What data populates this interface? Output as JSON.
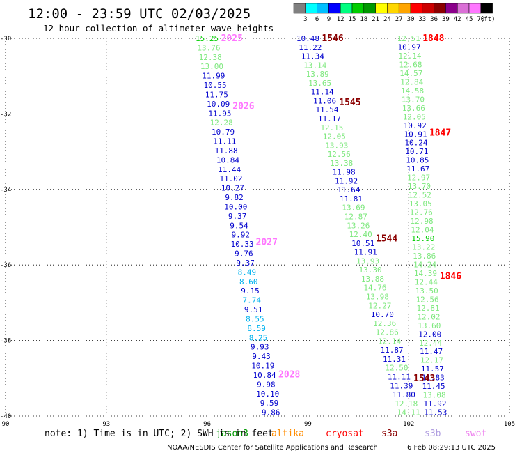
{
  "header": {
    "title": "12:00 - 23:59 UTC 02/03/2025",
    "subtitle": "12 hour collection of altimeter wave heights"
  },
  "colorbar": {
    "unit": "(ft)",
    "ticks": [
      "3",
      "6",
      "9",
      "12",
      "15",
      "18",
      "21",
      "24",
      "27",
      "30",
      "33",
      "36",
      "39",
      "42",
      "45",
      "70"
    ],
    "colors": [
      "#808080",
      "#00ffff",
      "#00bfff",
      "#0000ff",
      "#00ff7f",
      "#00cd00",
      "#009900",
      "#ffff00",
      "#ffd700",
      "#ffa500",
      "#ff0000",
      "#cc0000",
      "#8b0000",
      "#8b008b",
      "#da70d6",
      "#ff77ff",
      "#000000"
    ]
  },
  "footer": {
    "note": "note: 1) Time is in UTC; 2) SWH is in feet",
    "satellites": [
      {
        "name": "jason3",
        "color": "#009900"
      },
      {
        "name": "altika",
        "color": "#ff8c00"
      },
      {
        "name": "cryosat",
        "color": "#ff0000"
      },
      {
        "name": "s3a",
        "color": "#8b0000"
      },
      {
        "name": "s3b",
        "color": "#b09ee0"
      },
      {
        "name": "swot",
        "color": "#ee82ee"
      }
    ],
    "credit": "NOAA/NESDIS Center for Satellite Applications and Research",
    "timestamp": "6 Feb 08:29:13 UTC 2025"
  },
  "chart_data": {
    "type": "scatter",
    "xlim": [
      90,
      105
    ],
    "ylim": [
      -40,
      -30
    ],
    "xticks": [
      "90",
      "93",
      "96",
      "99",
      "102",
      "105"
    ],
    "yticks": [
      "-30",
      "-32",
      "-34",
      "-36",
      "-38",
      "-40"
    ],
    "grid": true,
    "tracks": [
      {
        "pass": "2025",
        "pass_color": "#ff77ff",
        "start": [
          96.0,
          -30.0
        ],
        "end": [
          97.9,
          -39.9
        ],
        "points": [
          {
            "v": "15.25",
            "c": "#00cd00"
          },
          {
            "v": "13.76",
            "c": "#7ee87e"
          },
          {
            "v": "12.38",
            "c": "#7ee87e"
          },
          {
            "v": "13.00",
            "c": "#7ee87e"
          },
          {
            "v": "11.99",
            "c": "#0000cd"
          },
          {
            "v": "10.55",
            "c": "#0000cd"
          },
          {
            "v": "11.75",
            "c": "#0000cd"
          },
          {
            "v": "10.09",
            "c": "#0000cd"
          },
          {
            "v": "11.95",
            "c": "#0000cd"
          },
          {
            "v": "12.28",
            "c": "#7ee87e"
          },
          {
            "v": "10.79",
            "c": "#0000cd"
          },
          {
            "v": "11.11",
            "c": "#0000cd"
          },
          {
            "v": "11.88",
            "c": "#0000cd"
          },
          {
            "v": "10.84",
            "c": "#0000cd"
          },
          {
            "v": "11.44",
            "c": "#0000cd"
          },
          {
            "v": "11.02",
            "c": "#0000cd"
          },
          {
            "v": "10.27",
            "c": "#0000cd"
          },
          {
            "v": "9.82",
            "c": "#0000cd"
          },
          {
            "v": "10.00",
            "c": "#0000cd"
          },
          {
            "v": "9.37",
            "c": "#0000cd"
          },
          {
            "v": "9.54",
            "c": "#0000cd"
          },
          {
            "v": "9.92",
            "c": "#0000cd"
          },
          {
            "v": "10.33",
            "c": "#0000cd"
          },
          {
            "v": "9.76",
            "c": "#0000cd"
          },
          {
            "v": "9.37",
            "c": "#0000cd"
          },
          {
            "v": "8.49",
            "c": "#00b2ee"
          },
          {
            "v": "8.60",
            "c": "#00b2ee"
          },
          {
            "v": "9.15",
            "c": "#0000cd"
          },
          {
            "v": "7.74",
            "c": "#00b2ee"
          },
          {
            "v": "9.51",
            "c": "#0000cd"
          },
          {
            "v": "8.55",
            "c": "#00b2ee"
          },
          {
            "v": "8.59",
            "c": "#00b2ee"
          },
          {
            "v": "8.25",
            "c": "#00b2ee"
          },
          {
            "v": "9.93",
            "c": "#0000cd"
          },
          {
            "v": "9.43",
            "c": "#0000cd"
          },
          {
            "v": "10.19",
            "c": "#0000cd"
          },
          {
            "v": "10.84",
            "c": "#0000cd"
          },
          {
            "v": "9.98",
            "c": "#0000cd"
          },
          {
            "v": "10.10",
            "c": "#0000cd"
          },
          {
            "v": "9.59",
            "c": "#0000cd"
          },
          {
            "v": "9.86",
            "c": "#0000cd"
          }
        ],
        "pass_labels": [
          {
            "text": "2025",
            "lat": -30.0
          },
          {
            "text": "2026",
            "lat": -31.8
          },
          {
            "text": "2027",
            "lat": -35.4
          },
          {
            "text": "2028",
            "lat": -38.9
          }
        ]
      },
      {
        "pass": "1546",
        "pass_color": "#8b0000",
        "start": [
          99.0,
          -30.0
        ],
        "end": [
          102.0,
          -39.9
        ],
        "points": [
          {
            "v": "10.48",
            "c": "#0000cd"
          },
          {
            "v": "11.22",
            "c": "#0000cd"
          },
          {
            "v": "11.34",
            "c": "#0000cd"
          },
          {
            "v": "13.14",
            "c": "#7ee87e"
          },
          {
            "v": "13.89",
            "c": "#7ee87e"
          },
          {
            "v": "13.65",
            "c": "#7ee87e"
          },
          {
            "v": "11.14",
            "c": "#0000cd"
          },
          {
            "v": "11.06",
            "c": "#0000cd"
          },
          {
            "v": "11.54",
            "c": "#0000cd"
          },
          {
            "v": "11.17",
            "c": "#0000cd"
          },
          {
            "v": "12.15",
            "c": "#7ee87e"
          },
          {
            "v": "12.05",
            "c": "#7ee87e"
          },
          {
            "v": "13.93",
            "c": "#7ee87e"
          },
          {
            "v": "12.56",
            "c": "#7ee87e"
          },
          {
            "v": "13.38",
            "c": "#7ee87e"
          },
          {
            "v": "11.98",
            "c": "#0000cd"
          },
          {
            "v": "11.92",
            "c": "#0000cd"
          },
          {
            "v": "11.64",
            "c": "#0000cd"
          },
          {
            "v": "11.81",
            "c": "#0000cd"
          },
          {
            "v": "13.69",
            "c": "#7ee87e"
          },
          {
            "v": "12.87",
            "c": "#7ee87e"
          },
          {
            "v": "13.26",
            "c": "#7ee87e"
          },
          {
            "v": "12.40",
            "c": "#7ee87e"
          },
          {
            "v": "10.51",
            "c": "#0000cd"
          },
          {
            "v": "11.91",
            "c": "#0000cd"
          },
          {
            "v": "13.93",
            "c": "#7ee87e"
          },
          {
            "v": "13.30",
            "c": "#7ee87e"
          },
          {
            "v": "13.88",
            "c": "#7ee87e"
          },
          {
            "v": "14.76",
            "c": "#7ee87e"
          },
          {
            "v": "13.98",
            "c": "#7ee87e"
          },
          {
            "v": "12.27",
            "c": "#7ee87e"
          },
          {
            "v": "10.70",
            "c": "#0000cd"
          },
          {
            "v": "12.36",
            "c": "#7ee87e"
          },
          {
            "v": "12.86",
            "c": "#7ee87e"
          },
          {
            "v": "12.14",
            "c": "#7ee87e"
          },
          {
            "v": "11.87",
            "c": "#0000cd"
          },
          {
            "v": "11.31",
            "c": "#0000cd"
          },
          {
            "v": "12.50",
            "c": "#7ee87e"
          },
          {
            "v": "11.11",
            "c": "#0000cd"
          },
          {
            "v": "11.39",
            "c": "#0000cd"
          },
          {
            "v": "11.80",
            "c": "#0000cd"
          },
          {
            "v": "12.18",
            "c": "#7ee87e"
          },
          {
            "v": "14.11",
            "c": "#7ee87e"
          }
        ],
        "pass_labels": [
          {
            "text": "1546",
            "lat": -30.0
          },
          {
            "text": "1545",
            "lat": -31.7
          },
          {
            "text": "1544",
            "lat": -35.3
          },
          {
            "text": "1543",
            "lat": -39.0
          }
        ]
      },
      {
        "pass": "1848",
        "pass_color": "#ff0000",
        "start": [
          102.0,
          -30.0
        ],
        "end": [
          102.8,
          -39.9
        ],
        "points": [
          {
            "v": "12.51",
            "c": "#7ee87e"
          },
          {
            "v": "10.97",
            "c": "#0000cd"
          },
          {
            "v": "12.14",
            "c": "#7ee87e"
          },
          {
            "v": "12.68",
            "c": "#7ee87e"
          },
          {
            "v": "14.57",
            "c": "#7ee87e"
          },
          {
            "v": "12.84",
            "c": "#7ee87e"
          },
          {
            "v": "14.58",
            "c": "#7ee87e"
          },
          {
            "v": "13.70",
            "c": "#7ee87e"
          },
          {
            "v": "13.66",
            "c": "#7ee87e"
          },
          {
            "v": "12.05",
            "c": "#7ee87e"
          },
          {
            "v": "10.92",
            "c": "#0000cd"
          },
          {
            "v": "10.91",
            "c": "#0000cd"
          },
          {
            "v": "10.24",
            "c": "#0000cd"
          },
          {
            "v": "10.71",
            "c": "#0000cd"
          },
          {
            "v": "10.85",
            "c": "#0000cd"
          },
          {
            "v": "11.67",
            "c": "#0000cd"
          },
          {
            "v": "12.97",
            "c": "#7ee87e"
          },
          {
            "v": "13.70",
            "c": "#7ee87e"
          },
          {
            "v": "12.52",
            "c": "#7ee87e"
          },
          {
            "v": "13.05",
            "c": "#7ee87e"
          },
          {
            "v": "12.76",
            "c": "#7ee87e"
          },
          {
            "v": "12.98",
            "c": "#7ee87e"
          },
          {
            "v": "12.04",
            "c": "#7ee87e"
          },
          {
            "v": "15.90",
            "c": "#00cd00"
          },
          {
            "v": "13.22",
            "c": "#7ee87e"
          },
          {
            "v": "13.86",
            "c": "#7ee87e"
          },
          {
            "v": "14.24",
            "c": "#7ee87e"
          },
          {
            "v": "14.39",
            "c": "#7ee87e"
          },
          {
            "v": "12.44",
            "c": "#7ee87e"
          },
          {
            "v": "13.50",
            "c": "#7ee87e"
          },
          {
            "v": "12.56",
            "c": "#7ee87e"
          },
          {
            "v": "12.81",
            "c": "#7ee87e"
          },
          {
            "v": "12.02",
            "c": "#7ee87e"
          },
          {
            "v": "13.60",
            "c": "#7ee87e"
          },
          {
            "v": "12.00",
            "c": "#0000cd"
          },
          {
            "v": "12.44",
            "c": "#7ee87e"
          },
          {
            "v": "11.47",
            "c": "#0000cd"
          },
          {
            "v": "12.17",
            "c": "#7ee87e"
          },
          {
            "v": "11.57",
            "c": "#0000cd"
          },
          {
            "v": "11.83",
            "c": "#0000cd"
          },
          {
            "v": "11.45",
            "c": "#0000cd"
          },
          {
            "v": "13.08",
            "c": "#7ee87e"
          },
          {
            "v": "11.92",
            "c": "#0000cd"
          },
          {
            "v": "11.53",
            "c": "#0000cd"
          }
        ],
        "pass_labels": [
          {
            "text": "1848",
            "lat": -30.0
          },
          {
            "text": "1847",
            "lat": -32.5
          },
          {
            "text": "1846",
            "lat": -36.3
          }
        ]
      }
    ]
  }
}
